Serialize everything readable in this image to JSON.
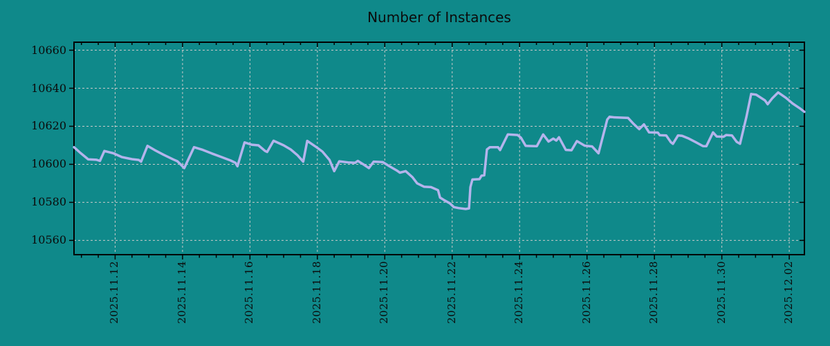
{
  "title": "Number of Instances",
  "colors": {
    "background": "#0f898a",
    "line": "#b4b4ec",
    "grid": "#c9c9c9",
    "border": "#000000",
    "text": "#0b0b0b"
  },
  "chart_data": {
    "type": "line",
    "title": "Number of Instances",
    "series_name": "instances",
    "grid": true,
    "x_unit": "days since 2025-11-11",
    "x_range": [
      -0.22,
      21.45
    ],
    "y_range": [
      10552.5,
      10664.2
    ],
    "y_ticks": [
      10560,
      10580,
      10600,
      10620,
      10640,
      10660
    ],
    "x_ticks": [
      {
        "label": "2025.11.12",
        "day": 1
      },
      {
        "label": "2025.11.14",
        "day": 3
      },
      {
        "label": "2025.11.16",
        "day": 5
      },
      {
        "label": "2025.11.18",
        "day": 7
      },
      {
        "label": "2025.11.20",
        "day": 9
      },
      {
        "label": "2025.11.22",
        "day": 11
      },
      {
        "label": "2025.11.24",
        "day": 13
      },
      {
        "label": "2025.11.26",
        "day": 15
      },
      {
        "label": "2025.11.28",
        "day": 17
      },
      {
        "label": "2025.11.30",
        "day": 19
      },
      {
        "label": "2025.12.02",
        "day": 21
      }
    ],
    "minor_x_tick_step_days": 0.5,
    "points": [
      [
        -0.22,
        10609.0
      ],
      [
        -0.03,
        10606.0
      ],
      [
        0.12,
        10603.8
      ],
      [
        0.2,
        10602.6
      ],
      [
        0.45,
        10602.4
      ],
      [
        0.55,
        10601.8
      ],
      [
        0.68,
        10607.0
      ],
      [
        0.95,
        10605.8
      ],
      [
        1.2,
        10603.8
      ],
      [
        1.5,
        10602.7
      ],
      [
        1.7,
        10602.3
      ],
      [
        1.77,
        10601.4
      ],
      [
        1.96,
        10609.7
      ],
      [
        2.17,
        10607.5
      ],
      [
        2.44,
        10605.0
      ],
      [
        2.72,
        10602.6
      ],
      [
        2.85,
        10601.6
      ],
      [
        3.05,
        10598.0
      ],
      [
        3.34,
        10609.0
      ],
      [
        3.6,
        10607.6
      ],
      [
        3.87,
        10605.7
      ],
      [
        4.16,
        10603.8
      ],
      [
        4.43,
        10602.0
      ],
      [
        4.57,
        10600.8
      ],
      [
        4.63,
        10599.0
      ],
      [
        4.84,
        10611.5
      ],
      [
        5.05,
        10610.3
      ],
      [
        5.25,
        10610.0
      ],
      [
        5.45,
        10607.0
      ],
      [
        5.51,
        10606.5
      ],
      [
        5.7,
        10612.4
      ],
      [
        6.0,
        10610.0
      ],
      [
        6.21,
        10607.8
      ],
      [
        6.41,
        10604.8
      ],
      [
        6.58,
        10601.4
      ],
      [
        6.7,
        10612.3
      ],
      [
        6.95,
        10609.3
      ],
      [
        7.15,
        10606.7
      ],
      [
        7.36,
        10602.3
      ],
      [
        7.5,
        10596.4
      ],
      [
        7.65,
        10601.6
      ],
      [
        7.91,
        10601.0
      ],
      [
        8.12,
        10600.8
      ],
      [
        8.2,
        10601.8
      ],
      [
        8.38,
        10599.8
      ],
      [
        8.53,
        10598.0
      ],
      [
        8.67,
        10601.4
      ],
      [
        8.94,
        10601.2
      ],
      [
        9.14,
        10599.0
      ],
      [
        9.35,
        10596.8
      ],
      [
        9.45,
        10595.6
      ],
      [
        9.62,
        10596.4
      ],
      [
        9.82,
        10593.2
      ],
      [
        9.96,
        10590.0
      ],
      [
        10.17,
        10588.2
      ],
      [
        10.37,
        10588.0
      ],
      [
        10.58,
        10586.4
      ],
      [
        10.64,
        10582.5
      ],
      [
        10.78,
        10581.0
      ],
      [
        10.93,
        10579.5
      ],
      [
        11.05,
        10577.5
      ],
      [
        11.19,
        10577.0
      ],
      [
        11.4,
        10576.5
      ],
      [
        11.5,
        10576.8
      ],
      [
        11.54,
        10588.0
      ],
      [
        11.6,
        10592.0
      ],
      [
        11.81,
        10592.2
      ],
      [
        11.87,
        10594.0
      ],
      [
        11.95,
        10594.2
      ],
      [
        12.03,
        10607.8
      ],
      [
        12.12,
        10609.0
      ],
      [
        12.36,
        10609.0
      ],
      [
        12.42,
        10607.5
      ],
      [
        12.65,
        10615.7
      ],
      [
        12.94,
        10615.4
      ],
      [
        13.04,
        10614.0
      ],
      [
        13.18,
        10609.7
      ],
      [
        13.51,
        10609.5
      ],
      [
        13.7,
        10615.7
      ],
      [
        13.86,
        10612.0
      ],
      [
        14.0,
        10613.5
      ],
      [
        14.09,
        10612.5
      ],
      [
        14.17,
        10614.2
      ],
      [
        14.37,
        10607.6
      ],
      [
        14.54,
        10607.4
      ],
      [
        14.7,
        10612.2
      ],
      [
        14.93,
        10609.8
      ],
      [
        15.15,
        10609.4
      ],
      [
        15.34,
        10605.8
      ],
      [
        15.6,
        10623.5
      ],
      [
        15.67,
        10625.0
      ],
      [
        15.81,
        10624.7
      ],
      [
        16.22,
        10624.4
      ],
      [
        16.38,
        10621.3
      ],
      [
        16.55,
        10618.5
      ],
      [
        16.69,
        10621.0
      ],
      [
        16.84,
        10616.8
      ],
      [
        17.1,
        10616.7
      ],
      [
        17.16,
        10615.3
      ],
      [
        17.35,
        10615.2
      ],
      [
        17.49,
        10611.6
      ],
      [
        17.55,
        10610.8
      ],
      [
        17.7,
        10615.2
      ],
      [
        17.82,
        10615.0
      ],
      [
        18.02,
        10613.5
      ],
      [
        18.23,
        10611.6
      ],
      [
        18.44,
        10609.6
      ],
      [
        18.54,
        10609.5
      ],
      [
        18.74,
        10616.8
      ],
      [
        18.85,
        10614.6
      ],
      [
        19.05,
        10614.5
      ],
      [
        19.13,
        10615.4
      ],
      [
        19.3,
        10615.2
      ],
      [
        19.44,
        10611.8
      ],
      [
        19.54,
        10610.8
      ],
      [
        19.73,
        10625.0
      ],
      [
        19.87,
        10637.0
      ],
      [
        20.02,
        10636.6
      ],
      [
        20.28,
        10633.6
      ],
      [
        20.36,
        10631.6
      ],
      [
        20.49,
        10634.6
      ],
      [
        20.67,
        10637.8
      ],
      [
        20.9,
        10635.0
      ],
      [
        21.1,
        10632.0
      ],
      [
        21.31,
        10629.5
      ],
      [
        21.45,
        10627.6
      ]
    ]
  }
}
